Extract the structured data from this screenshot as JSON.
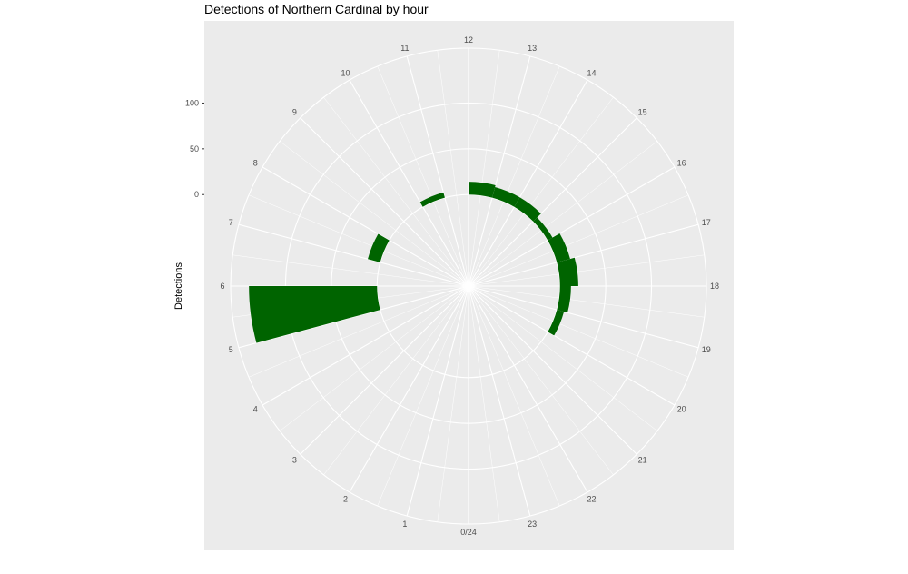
{
  "chart_data": {
    "type": "bar",
    "coord": "polar",
    "title": "Detections of Northern Cardinal by hour",
    "xlabel": "",
    "ylabel": "Detections",
    "x_ticks": [
      "0/24",
      "1",
      "2",
      "3",
      "4",
      "5",
      "6",
      "7",
      "8",
      "9",
      "10",
      "11",
      "12",
      "13",
      "14",
      "15",
      "16",
      "17",
      "18",
      "19",
      "20",
      "21",
      "22",
      "23"
    ],
    "y_ticks": [
      0,
      50,
      100
    ],
    "ylim": [
      -100,
      160
    ],
    "grid": true,
    "bar_color": "#006400",
    "panel_color": "#ebebeb",
    "grid_color": "#ffffff",
    "series": [
      {
        "x": [
          0.5,
          1.5,
          2.5,
          3.5,
          4.5,
          5.5,
          6.5,
          7.5,
          8.5,
          9.5,
          10.5,
          11.5,
          12.5,
          13.5,
          14.5,
          15.5,
          16.5,
          17.5,
          18.5,
          19.5,
          20.5,
          21.5,
          22.5,
          23.5
        ],
        "values": [
          0,
          0,
          0,
          0,
          0,
          140,
          0,
          14,
          0,
          0,
          6,
          0,
          14,
          12,
          12,
          6,
          15,
          20,
          12,
          8,
          0,
          0,
          0,
          0
        ]
      }
    ]
  }
}
